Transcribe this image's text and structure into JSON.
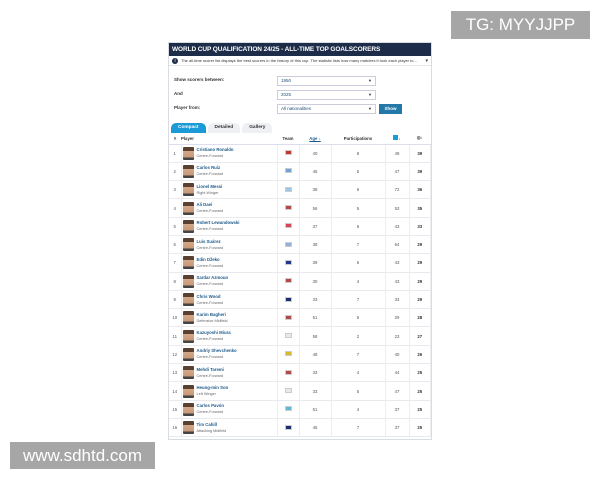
{
  "watermarks": {
    "top": "TG: MYYJJPP",
    "bottom": "www.sdhtd.com"
  },
  "header": {
    "title": "WORLD CUP QUALIFICATION 24/25 - ALL-TIME TOP GOALSCORERS",
    "info": "The all-time scorer list displays the best scorers in the history of this cup. The statistic lists how many matches it took each player to..."
  },
  "filters": {
    "between_label": "Show scorers between:",
    "from_year": "1950",
    "and_label": "And",
    "to_year": "2025",
    "player_from_label": "Player from:",
    "nationality": "All nationalities",
    "show_button": "Show"
  },
  "tabs": [
    "Compact",
    "Detailed",
    "Gallery"
  ],
  "columns": {
    "rank": "#",
    "player": "Player",
    "team": "Team",
    "age": "Age ↓",
    "participations": "Participations",
    "matches": "↓",
    "goals": "↓"
  },
  "rows": [
    {
      "rank": "1",
      "name": "Cristiano Ronaldo",
      "pos": "Centre-Forward",
      "flag": "#c0392b",
      "age": "40",
      "part": "8",
      "matches": "49",
      "goals": "39"
    },
    {
      "rank": "2",
      "name": "Carlos Ruiz",
      "pos": "Centre-Forward",
      "flag": "#6fa3d8",
      "age": "45",
      "part": "5",
      "matches": "47",
      "goals": "39"
    },
    {
      "rank": "3",
      "name": "Lionel Messi",
      "pos": "Right Winger",
      "flag": "#9cc6e8",
      "age": "38",
      "part": "6",
      "matches": "72",
      "goals": "36"
    },
    {
      "rank": "4",
      "name": "Ali Daei",
      "pos": "Centre-Forward",
      "flag": "#b24a4a",
      "age": "56",
      "part": "5",
      "matches": "53",
      "goals": "35"
    },
    {
      "rank": "5",
      "name": "Robert Lewandowski",
      "pos": "Centre-Forward",
      "flag": "#d6455a",
      "age": "37",
      "part": "6",
      "matches": "43",
      "goals": "33"
    },
    {
      "rank": "6",
      "name": "Luis Suárez",
      "pos": "Centre-Forward",
      "flag": "#8fb0d8",
      "age": "38",
      "part": "7",
      "matches": "64",
      "goals": "29"
    },
    {
      "rank": "7",
      "name": "Edin Džeko",
      "pos": "Centre-Forward",
      "flag": "#1f3a8a",
      "age": "39",
      "part": "6",
      "matches": "43",
      "goals": "29"
    },
    {
      "rank": "8",
      "name": "Sardar Azmoun",
      "pos": "Centre-Forward",
      "flag": "#b24a4a",
      "age": "30",
      "part": "4",
      "matches": "43",
      "goals": "29"
    },
    {
      "rank": "9",
      "name": "Chris Wood",
      "pos": "Centre-Forward",
      "flag": "#1a2f6e",
      "age": "33",
      "part": "7",
      "matches": "33",
      "goals": "29"
    },
    {
      "rank": "10",
      "name": "Karim Bagheri",
      "pos": "Defensive Midfield",
      "flag": "#b24a4a",
      "age": "51",
      "part": "5",
      "matches": "29",
      "goals": "28"
    },
    {
      "rank": "11",
      "name": "Kazuyoshi Miura",
      "pos": "Centre-Forward",
      "flag": "#e9e9e9",
      "age": "58",
      "part": "2",
      "matches": "23",
      "goals": "27"
    },
    {
      "rank": "12",
      "name": "Andriy Shevchenko",
      "pos": "Centre-Forward",
      "flag": "#d8b92a",
      "age": "48",
      "part": "7",
      "matches": "40",
      "goals": "26"
    },
    {
      "rank": "13",
      "name": "Mehdi Taremi",
      "pos": "Centre-Forward",
      "flag": "#b24a4a",
      "age": "33",
      "part": "4",
      "matches": "44",
      "goals": "25"
    },
    {
      "rank": "14",
      "name": "Heung-min Son",
      "pos": "Left Winger",
      "flag": "#e9e9e9",
      "age": "33",
      "part": "5",
      "matches": "47",
      "goals": "25"
    },
    {
      "rank": "15",
      "name": "Carlos Pavón",
      "pos": "Centre-Forward",
      "flag": "#5fb8d8",
      "age": "51",
      "part": "4",
      "matches": "37",
      "goals": "25"
    },
    {
      "rank": "16",
      "name": "Tim Cahill",
      "pos": "Attacking Midfield",
      "flag": "#1a2f6e",
      "age": "45",
      "part": "7",
      "matches": "37",
      "goals": "25"
    }
  ]
}
